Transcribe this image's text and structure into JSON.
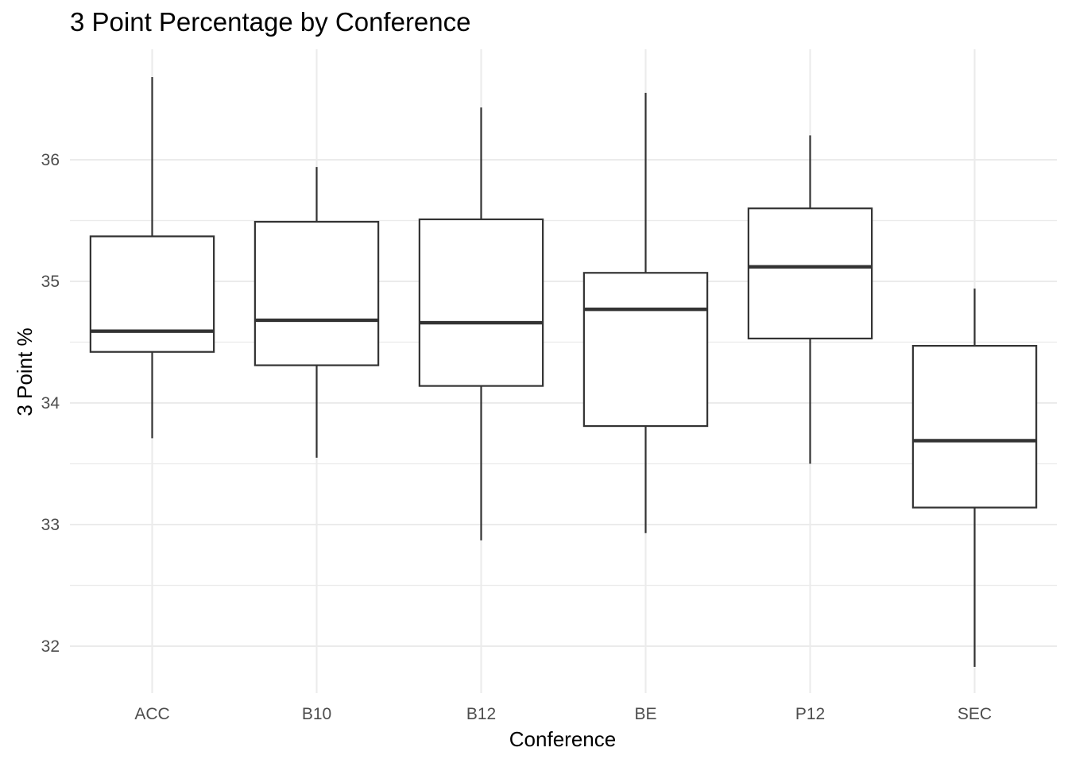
{
  "chart_data": {
    "type": "boxplot",
    "title": "3 Point Percentage by Conference",
    "xlabel": "Conference",
    "ylabel": "3 Point %",
    "ylim": [
      31.65,
      36.95
    ],
    "yticks": [
      32,
      33,
      34,
      35,
      36
    ],
    "grid": true,
    "categories": [
      "ACC",
      "B10",
      "B12",
      "BE",
      "P12",
      "SEC"
    ],
    "boxes": [
      {
        "category": "ACC",
        "min": 33.71,
        "q1": 34.42,
        "median": 34.59,
        "q3": 35.37,
        "max": 36.68
      },
      {
        "category": "B10",
        "min": 33.55,
        "q1": 34.31,
        "median": 34.68,
        "q3": 35.49,
        "max": 35.94
      },
      {
        "category": "B12",
        "min": 32.87,
        "q1": 34.14,
        "median": 34.66,
        "q3": 35.51,
        "max": 36.43
      },
      {
        "category": "BE",
        "min": 32.93,
        "q1": 33.81,
        "median": 34.77,
        "q3": 35.07,
        "max": 36.55
      },
      {
        "category": "P12",
        "min": 33.5,
        "q1": 34.53,
        "median": 35.12,
        "q3": 35.6,
        "max": 36.2
      },
      {
        "category": "SEC",
        "min": 31.83,
        "q1": 33.14,
        "median": 33.69,
        "q3": 34.47,
        "max": 34.94
      }
    ]
  }
}
